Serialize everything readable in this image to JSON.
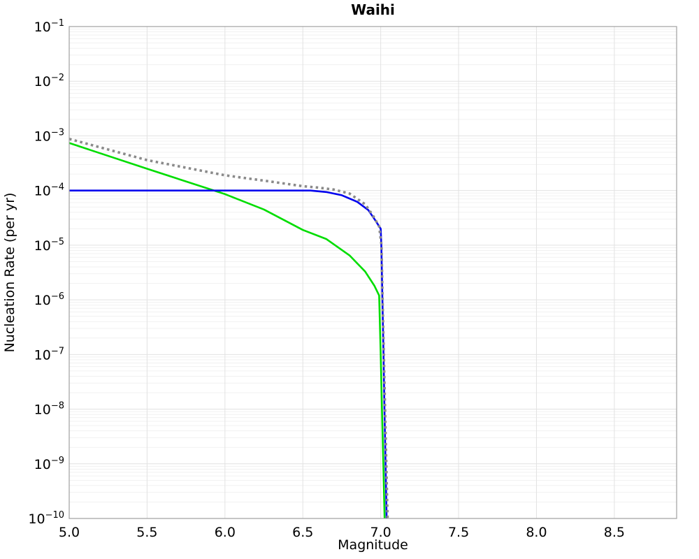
{
  "page": {
    "background_color": "#ffffff",
    "text_color": "#000000"
  },
  "chart_data": {
    "type": "line",
    "title": "Waihi",
    "xlabel": "Magnitude",
    "ylabel": "Nucleation Rate (per yr)",
    "x_axis": {
      "min": 5.0,
      "max": 8.9,
      "tick_values": [
        5.0,
        5.5,
        6.0,
        6.5,
        7.0,
        7.5,
        8.0,
        8.5
      ],
      "tick_labels": [
        "5.0",
        "5.5",
        "6.0",
        "6.5",
        "7.0",
        "7.5",
        "8.0",
        "8.5"
      ]
    },
    "y_axis": {
      "scale": "log",
      "min": 1e-10,
      "max": 0.1,
      "tick_exponents": [
        -1,
        -2,
        -3,
        -4,
        -5,
        -6,
        -7,
        -8,
        -9,
        -10
      ],
      "tick_base": "10"
    },
    "grid": {
      "show_major": true,
      "show_minor": true,
      "major_color": "#e2e2e2",
      "minor_color": "#f1f1f1",
      "spine_color": "#a0a0a0"
    },
    "legend": {
      "visible": false
    },
    "series": [
      {
        "name": "green-solid-line",
        "color": "#00dd00",
        "style": "solid",
        "width": 2.6,
        "x": [
          5.0,
          5.5,
          6.0,
          6.25,
          6.5,
          6.65,
          6.8,
          6.9,
          6.96,
          6.99,
          7.0,
          7.008,
          7.017,
          7.025
        ],
        "y": [
          0.00074,
          0.00025,
          8.6e-05,
          4.5e-05,
          1.9e-05,
          1.3e-05,
          6.5e-06,
          3.3e-06,
          1.8e-06,
          1.2e-06,
          1e-07,
          1e-08,
          1e-09,
          1e-10
        ]
      },
      {
        "name": "blue-solid-line",
        "color": "#0000ee",
        "style": "solid",
        "width": 2.6,
        "x": [
          5.0,
          6.55,
          6.65,
          6.75,
          6.85,
          6.92,
          6.96,
          7.0,
          7.004,
          7.011,
          7.018,
          7.024,
          7.031,
          7.038
        ],
        "y": [
          0.0001,
          0.0001,
          9.4e-05,
          8.2e-05,
          6.2e-05,
          4.4e-05,
          3e-05,
          2e-05,
          1e-05,
          1e-06,
          1e-07,
          1e-08,
          1e-09,
          1e-10
        ]
      },
      {
        "name": "gray-dotted-total-line",
        "color": "#8a8a8a",
        "style": "dotted",
        "width": 3.6,
        "x": [
          5.0,
          5.5,
          6.0,
          6.3,
          6.5,
          6.6,
          6.7,
          6.8,
          6.9,
          6.95,
          6.99,
          7.005,
          7.012,
          7.02,
          7.028,
          7.036,
          7.044
        ],
        "y": [
          0.00088,
          0.00036,
          0.00019,
          0.000145,
          0.00012,
          0.000113,
          0.000104,
          8.8e-05,
          5.6e-05,
          3.5e-05,
          2.2e-05,
          1e-05,
          1e-06,
          1e-07,
          1e-08,
          1e-09,
          1e-10
        ]
      }
    ]
  }
}
